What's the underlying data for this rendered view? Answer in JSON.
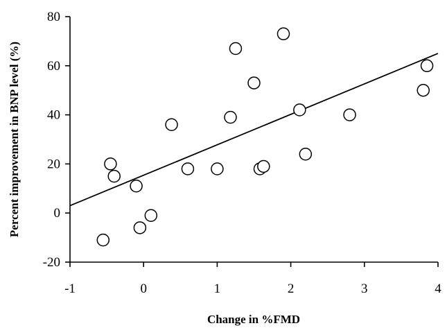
{
  "chart_data": {
    "type": "scatter",
    "title": "",
    "xlabel": "Change in %FMD",
    "ylabel": "Percent improvement in BNP level (%)",
    "xlim": [
      -1,
      4
    ],
    "ylim": [
      -20,
      80
    ],
    "xticks": [
      "-1",
      "0",
      "1",
      "2",
      "3",
      "4"
    ],
    "yticks": [
      "80",
      "60",
      "40",
      "20",
      "0",
      "-20"
    ],
    "grid": false,
    "series": [
      {
        "points": [
          {
            "x": -0.55,
            "y": -11
          },
          {
            "x": -0.45,
            "y": 20
          },
          {
            "x": -0.4,
            "y": 15
          },
          {
            "x": -0.1,
            "y": 11
          },
          {
            "x": -0.05,
            "y": -6
          },
          {
            "x": 0.1,
            "y": -1
          },
          {
            "x": 0.38,
            "y": 36
          },
          {
            "x": 0.6,
            "y": 18
          },
          {
            "x": 1.0,
            "y": 18
          },
          {
            "x": 1.18,
            "y": 39
          },
          {
            "x": 1.25,
            "y": 67
          },
          {
            "x": 1.5,
            "y": 53
          },
          {
            "x": 1.58,
            "y": 18
          },
          {
            "x": 1.63,
            "y": 19
          },
          {
            "x": 1.9,
            "y": 73
          },
          {
            "x": 2.12,
            "y": 42
          },
          {
            "x": 2.2,
            "y": 24
          },
          {
            "x": 2.8,
            "y": 40
          },
          {
            "x": 3.8,
            "y": 50
          },
          {
            "x": 3.85,
            "y": 60
          }
        ]
      }
    ],
    "regression": {
      "x": [
        -1,
        4
      ],
      "y": [
        3,
        65
      ]
    }
  }
}
